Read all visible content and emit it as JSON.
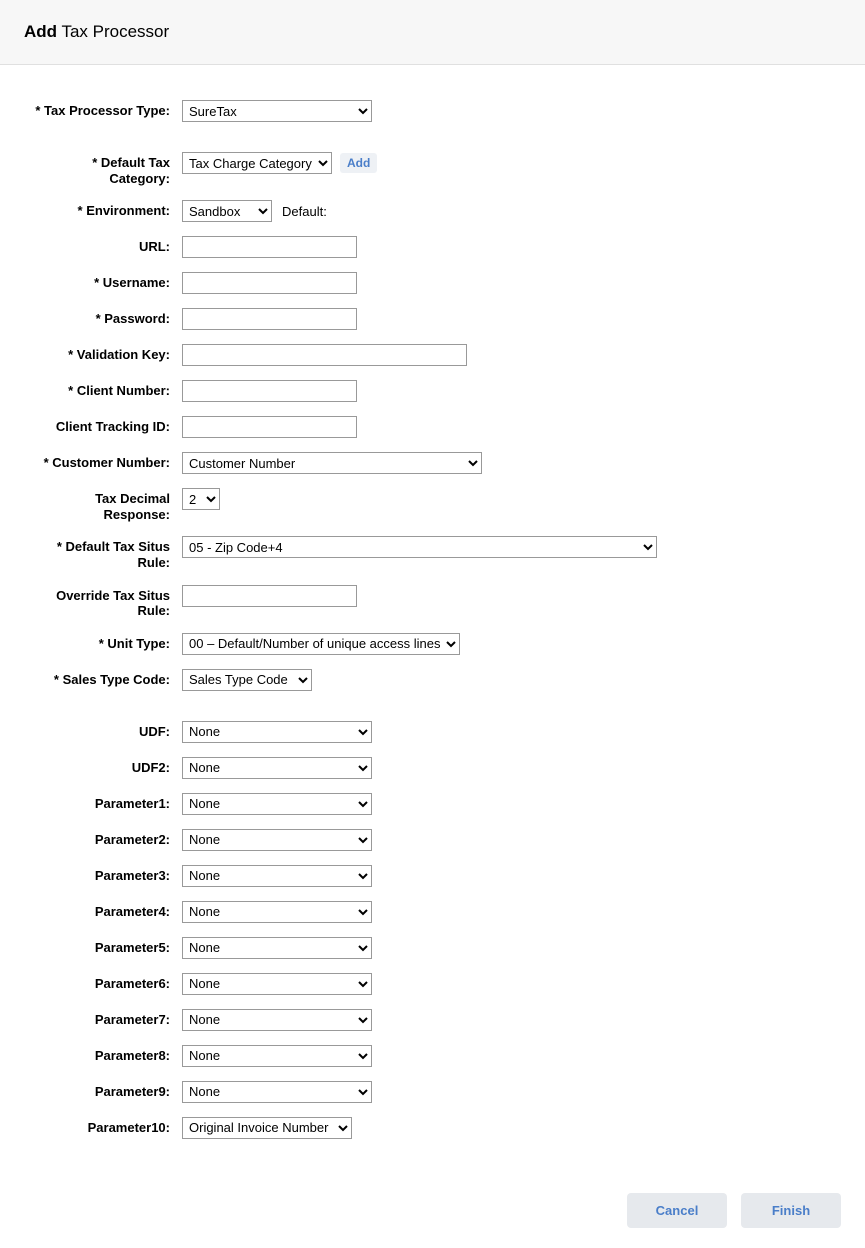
{
  "header": {
    "title_bold": "Add",
    "title_rest": " Tax Processor"
  },
  "fields": {
    "tax_processor_type": {
      "label": "* Tax Processor Type:",
      "value": "SureTax"
    },
    "default_tax_category": {
      "label": "* Default Tax Category:",
      "value": "Tax Charge Category",
      "add_link": "Add"
    },
    "environment": {
      "label": "* Environment:",
      "value": "Sandbox",
      "suffix": "Default:"
    },
    "url": {
      "label": "URL:",
      "value": ""
    },
    "username": {
      "label": "* Username:",
      "value": ""
    },
    "password": {
      "label": "* Password:",
      "value": ""
    },
    "validation_key": {
      "label": "* Validation Key:",
      "value": ""
    },
    "client_number": {
      "label": "* Client Number:",
      "value": ""
    },
    "client_tracking_id": {
      "label": "Client Tracking ID:",
      "value": ""
    },
    "customer_number": {
      "label": "* Customer Number:",
      "value": "Customer Number"
    },
    "tax_decimal_response": {
      "label": "Tax Decimal Response:",
      "value": "2"
    },
    "default_tax_situs": {
      "label": "* Default Tax Situs Rule:",
      "value": "05 - Zip Code+4"
    },
    "override_tax_situs": {
      "label": "Override Tax Situs Rule:",
      "value": ""
    },
    "unit_type": {
      "label": "* Unit Type:",
      "value": "00 – Default/Number of unique access lines"
    },
    "sales_type_code": {
      "label": "* Sales Type Code:",
      "value": "Sales Type Code"
    },
    "udf": {
      "label": "UDF:",
      "value": "None"
    },
    "udf2": {
      "label": "UDF2:",
      "value": "None"
    },
    "param1": {
      "label": "Parameter1:",
      "value": "None"
    },
    "param2": {
      "label": "Parameter2:",
      "value": "None"
    },
    "param3": {
      "label": "Parameter3:",
      "value": "None"
    },
    "param4": {
      "label": "Parameter4:",
      "value": "None"
    },
    "param5": {
      "label": "Parameter5:",
      "value": "None"
    },
    "param6": {
      "label": "Parameter6:",
      "value": "None"
    },
    "param7": {
      "label": "Parameter7:",
      "value": "None"
    },
    "param8": {
      "label": "Parameter8:",
      "value": "None"
    },
    "param9": {
      "label": "Parameter9:",
      "value": "None"
    },
    "param10": {
      "label": "Parameter10:",
      "value": "Original Invoice Number"
    }
  },
  "footer": {
    "cancel": "Cancel",
    "finish": "Finish"
  }
}
